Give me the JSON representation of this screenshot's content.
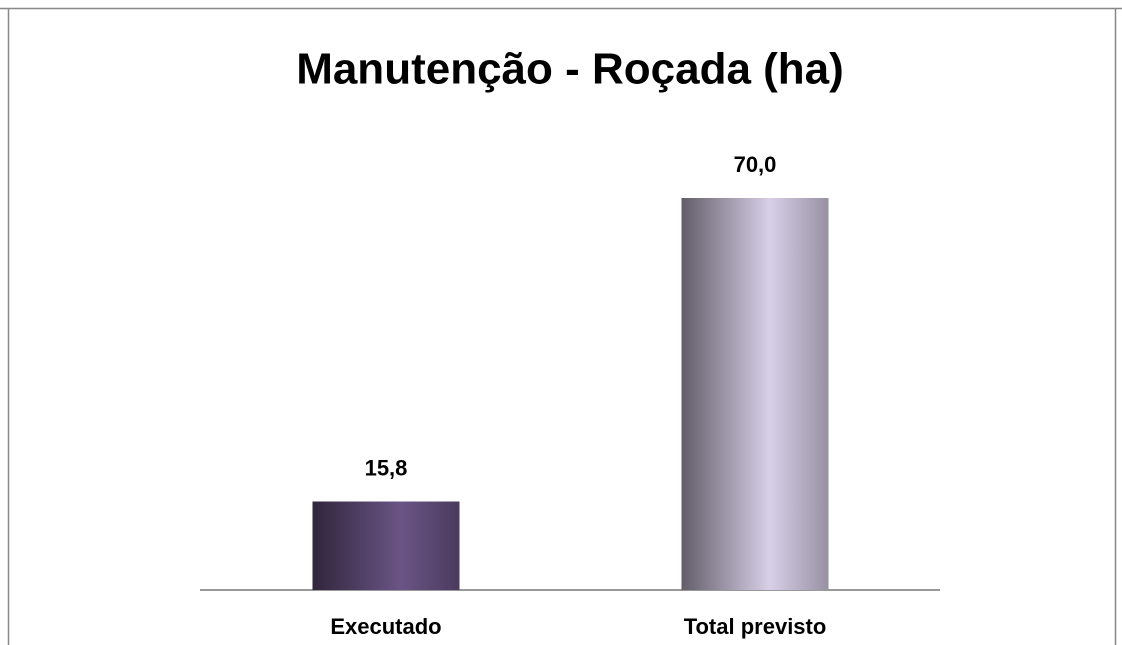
{
  "chart_data": {
    "type": "bar",
    "title": "Manutenção - Roçada (ha)",
    "categories": [
      "Executado",
      "Total previsto"
    ],
    "values": [
      15.8,
      70.0
    ],
    "value_labels": [
      "15,8",
      "70,0"
    ],
    "colors": [
      "#6a5485",
      "#d8cfe8"
    ]
  }
}
